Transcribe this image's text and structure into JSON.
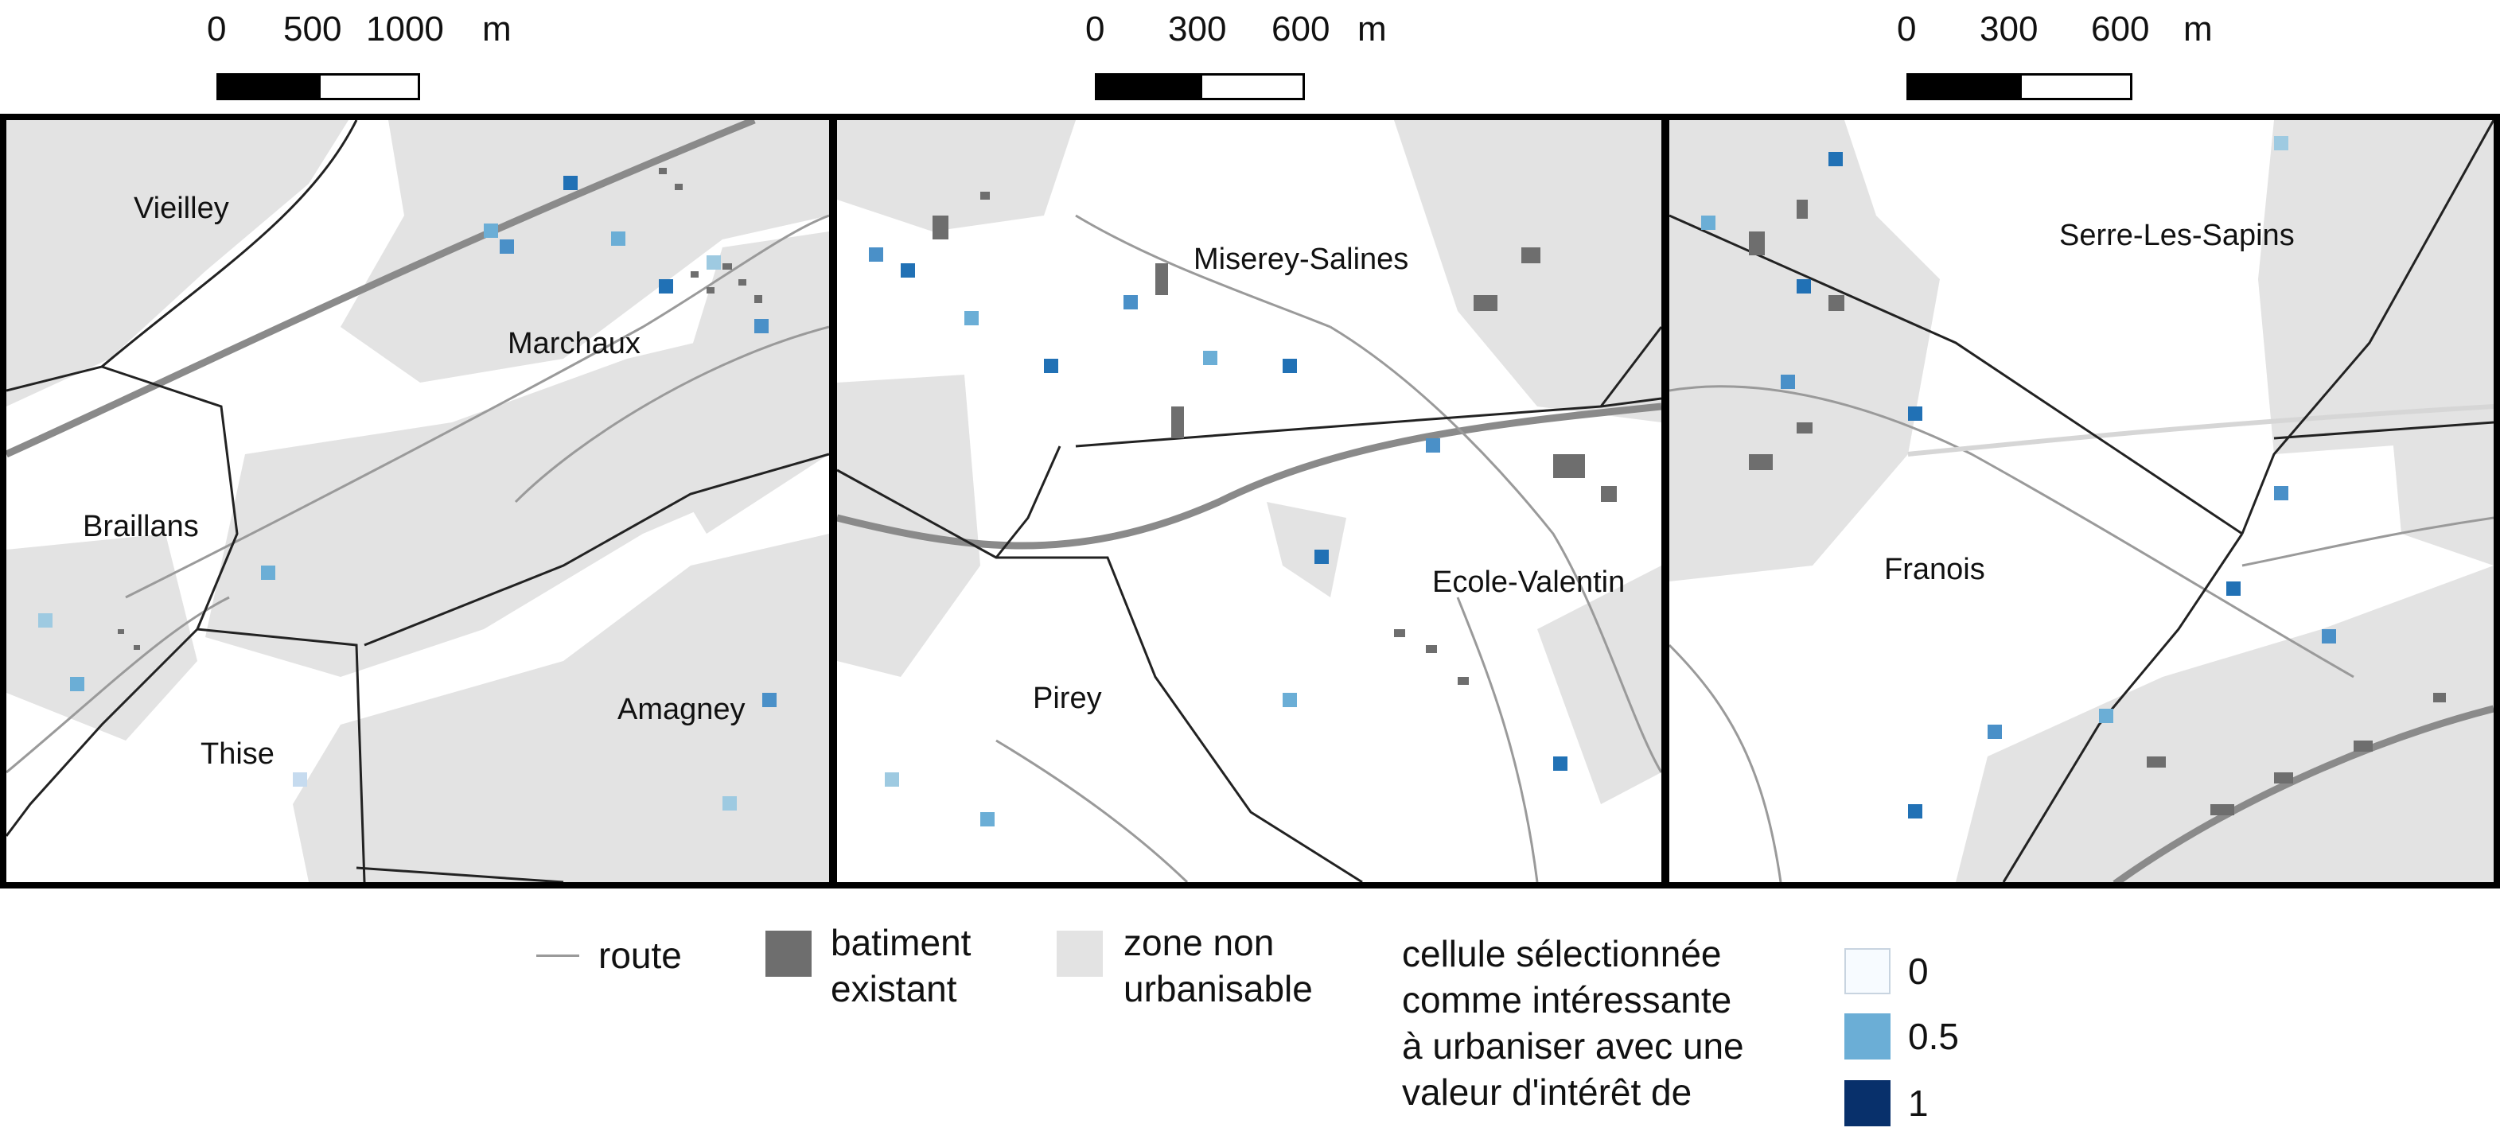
{
  "scalebars": [
    {
      "ticks": [
        "0",
        "500",
        "1000"
      ],
      "unit": "m"
    },
    {
      "ticks": [
        "0",
        "300",
        "600"
      ],
      "unit": "m"
    },
    {
      "ticks": [
        "0",
        "300",
        "600"
      ],
      "unit": "m"
    }
  ],
  "panels": [
    {
      "places": [
        "Vieilley",
        "Marchaux",
        "Braillans",
        "Thise",
        "Amagney"
      ]
    },
    {
      "places": [
        "Miserey-Salines",
        "Ecole-Valentin",
        "Pirey"
      ]
    },
    {
      "places": [
        "Serre-Les-Sapins",
        "Franois"
      ]
    }
  ],
  "legend": {
    "route": "route",
    "batiment_line1": "batiment",
    "batiment_line2": "existant",
    "zone_line1": "zone non",
    "zone_line2": "urbanisable",
    "cell_line1": "cellule sélectionnée",
    "cell_line2": "comme intéressante",
    "cell_line3": "à urbaniser avec une",
    "cell_line4": "valeur d'intérêt de",
    "scale": [
      {
        "label": "0",
        "color": "#f7fbff"
      },
      {
        "label": "0.5",
        "color": "#6baed6"
      },
      {
        "label": "1",
        "color": "#08306b"
      }
    ]
  },
  "colors": {
    "building": "#6e6e6e",
    "non_urbanisable": "#e3e3e3",
    "road": "#9a9a9a",
    "boundary": "#222222",
    "cell_mid": "#4a90c8"
  }
}
